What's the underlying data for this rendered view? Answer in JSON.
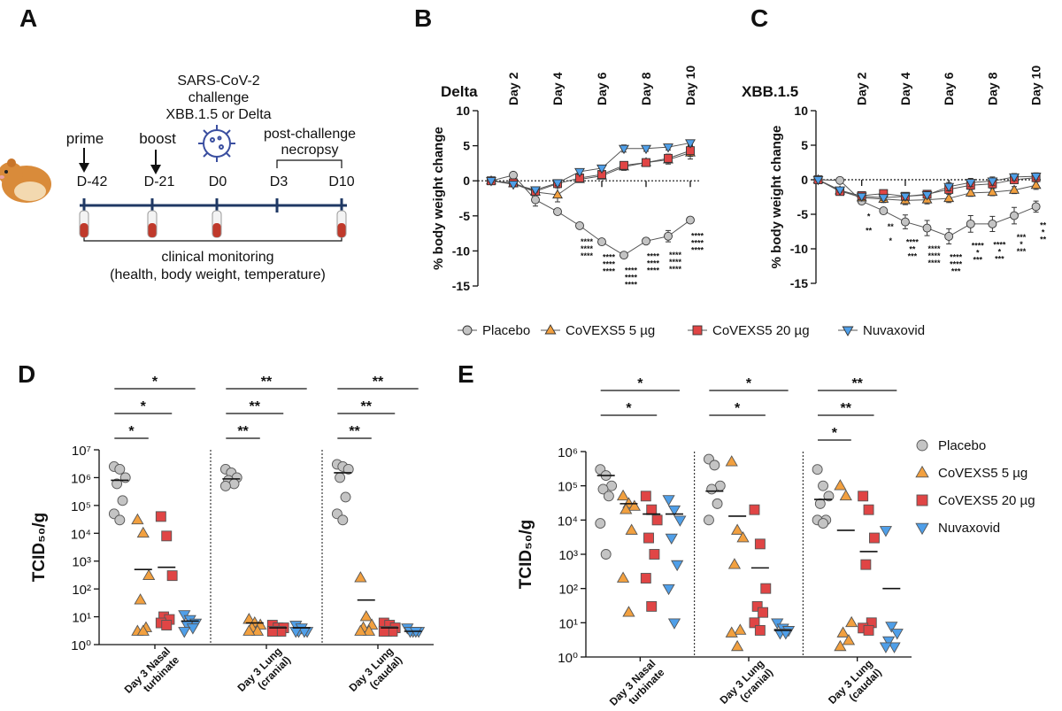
{
  "diagram": {
    "panel_label": "A",
    "challenge": [
      "SARS-CoV-2",
      "challenge",
      "XBB.1.5 or Delta"
    ],
    "prime": "prime",
    "boost": "boost",
    "necropsy": [
      "post-challenge",
      "necropsy"
    ],
    "timepoints": [
      "D-42",
      "D-21",
      "D0",
      "D3",
      "D10"
    ],
    "monitoring": [
      "clinical monitoring",
      "(health, body weight, temperature)"
    ]
  },
  "chart_data": [
    {
      "type": "line",
      "panel_label": "B",
      "title": "Delta",
      "y_label": "% body weight change",
      "x": [
        1,
        2,
        3,
        4,
        5,
        6,
        7,
        8,
        9,
        10
      ],
      "xlim": [
        0.4,
        10.4
      ],
      "xticks": [
        {
          "value": 2,
          "label": "Day 2"
        },
        {
          "value": 4,
          "label": "Day 4"
        },
        {
          "value": 6,
          "label": "Day 6"
        },
        {
          "value": 8,
          "label": "Day 8"
        },
        {
          "value": 10,
          "label": "Day 10"
        }
      ],
      "ylim": [
        -15,
        10
      ],
      "yticks": [
        -15,
        -10,
        -5,
        0,
        5,
        10
      ],
      "legend": "below",
      "series": [
        {
          "name": "Placebo",
          "color": "#c4c4c4",
          "marker": "circle",
          "values": [
            0,
            0.8,
            -2.7,
            -4.4,
            -6.4,
            -8.7,
            -10.6,
            -8.6,
            -7.9,
            -5.6
          ],
          "errors": [
            0.2,
            0.3,
            0.9,
            0.4,
            0.4,
            0.3,
            0.3,
            0.3,
            0.8,
            0.4
          ]
        },
        {
          "name": "CoVEXS5 5 µg",
          "color": "#f2a03f",
          "marker": "triangle-up",
          "values": [
            0,
            -0.4,
            -1.6,
            -2.0,
            0.2,
            0.7,
            2.0,
            2.6,
            3.0,
            4.0
          ],
          "errors": [
            0.2,
            0.3,
            0.4,
            1.0,
            0.4,
            0.4,
            0.5,
            0.5,
            0.6,
            0.9
          ],
          "stars": [
            null,
            null,
            null,
            null,
            "****",
            "****",
            "****",
            "****",
            "****",
            "****"
          ]
        },
        {
          "name": "CoVEXS5 20 µg",
          "color": "#e04545",
          "marker": "square",
          "values": [
            0,
            -0.3,
            -1.5,
            -0.4,
            0.4,
            0.9,
            2.2,
            2.6,
            3.2,
            4.3
          ],
          "errors": [
            0.2,
            0.3,
            0.4,
            0.4,
            0.4,
            0.4,
            0.5,
            0.5,
            0.6,
            0.8
          ],
          "stars": [
            null,
            null,
            null,
            null,
            "****",
            "****",
            "****",
            "****",
            "****",
            "****"
          ]
        },
        {
          "name": "Nuvaxovid",
          "color": "#4f9fe9",
          "marker": "triangle-down",
          "values": [
            0,
            -0.5,
            -1.3,
            -0.3,
            1.3,
            1.8,
            4.6,
            4.6,
            4.8,
            5.4
          ],
          "errors": [
            0.2,
            0.3,
            0.3,
            0.4,
            0.4,
            0.4,
            0.5,
            0.4,
            0.4,
            0.4
          ],
          "stars": [
            null,
            null,
            null,
            null,
            "****",
            "****",
            "****",
            "****",
            "****",
            "****"
          ]
        }
      ]
    },
    {
      "type": "line",
      "panel_label": "C",
      "title": "XBB.1.5",
      "y_label": "% body weight change",
      "x": [
        0,
        1,
        2,
        3,
        4,
        5,
        6,
        7,
        8,
        9,
        10
      ],
      "xlim": [
        -0.1,
        10.3
      ],
      "xticks": [
        {
          "value": 2,
          "label": "Day 2"
        },
        {
          "value": 4,
          "label": "Day 4"
        },
        {
          "value": 6,
          "label": "Day 6"
        },
        {
          "value": 8,
          "label": "Day 8"
        },
        {
          "value": 10,
          "label": "Day 10"
        }
      ],
      "ylim": [
        -15,
        10
      ],
      "yticks": [
        -15,
        -10,
        -5,
        0,
        5,
        10
      ],
      "series": [
        {
          "name": "Placebo",
          "color": "#c4c4c4",
          "marker": "circle",
          "values": [
            0,
            -0.1,
            -3.1,
            -4.5,
            -6.1,
            -7.0,
            -8.2,
            -6.4,
            -6.4,
            -5.2,
            -3.9
          ],
          "errors": [
            0,
            0.2,
            0.3,
            0.4,
            1.0,
            1.1,
            1.1,
            1.2,
            1.1,
            1.2,
            0.8
          ]
        },
        {
          "name": "CoVEXS5 5 µg",
          "color": "#f2a03f",
          "marker": "triangle-up",
          "values": [
            0,
            -1.6,
            -2.6,
            -2.8,
            -3.0,
            -2.9,
            -2.7,
            -1.9,
            -1.8,
            -1.5,
            -0.8
          ],
          "errors": [
            0,
            0.3,
            0.3,
            0.5,
            0.6,
            0.6,
            0.6,
            0.5,
            0.5,
            0.5,
            0.6
          ],
          "stars": [
            null,
            null,
            null,
            null,
            "**",
            "****",
            "****",
            "*",
            "*",
            "*",
            "*"
          ]
        },
        {
          "name": "CoVEXS5 20 µg",
          "color": "#e04545",
          "marker": "square",
          "values": [
            0,
            -1.7,
            -2.3,
            -2.0,
            -2.4,
            -2.1,
            -1.4,
            -0.8,
            -0.6,
            0.0,
            0.3
          ],
          "errors": [
            0,
            0.3,
            0.3,
            0.4,
            0.5,
            0.5,
            0.5,
            0.6,
            0.5,
            0.5,
            0.6
          ],
          "stars": [
            null,
            null,
            "**",
            "*",
            "***",
            "****",
            "***",
            "***",
            "***",
            "***",
            "**"
          ]
        },
        {
          "name": "Nuvaxovid",
          "color": "#4f9fe9",
          "marker": "triangle-down",
          "values": [
            0,
            -1.5,
            -2.4,
            -2.6,
            -2.4,
            -2.2,
            -1.0,
            -0.4,
            -0.2,
            0.4,
            0.5
          ],
          "errors": [
            0,
            0.3,
            0.3,
            0.4,
            0.5,
            0.5,
            0.6,
            0.6,
            0.6,
            0.5,
            0.5
          ],
          "stars": [
            null,
            null,
            "*",
            "**",
            "****",
            "****",
            "****",
            "****",
            "****",
            "***",
            "**"
          ]
        }
      ]
    },
    {
      "type": "dot",
      "panel_label": "D",
      "y_label": "TCID₅₀/g",
      "log": true,
      "categories": [
        [
          "Day 3 Nasal",
          "turbinate"
        ],
        [
          "Day 3 Lung",
          "(cranial)"
        ],
        [
          "Day 3 Lung",
          "(caudal)"
        ]
      ],
      "ylim": [
        1,
        10000000
      ],
      "yticks": [
        {
          "value": 1,
          "label": "10⁰"
        },
        {
          "value": 10,
          "label": "10¹"
        },
        {
          "value": 100,
          "label": "10²"
        },
        {
          "value": 1000,
          "label": "10³"
        },
        {
          "value": 10000,
          "label": "10⁴"
        },
        {
          "value": 100000,
          "label": "10⁵"
        },
        {
          "value": 1000000,
          "label": "10⁶"
        },
        {
          "value": 10000000,
          "label": "10⁷"
        }
      ],
      "series": [
        {
          "name": "Placebo",
          "color": "#c4c4c4",
          "marker": "circle",
          "values": [
            [
              2500000,
              2000000,
              1000000,
              600000,
              150000,
              50000,
              30000
            ],
            [
              2000000,
              1500000,
              1000000,
              800000,
              600000,
              500000
            ],
            [
              3000000,
              2500000,
              2000000,
              1000000,
              200000,
              50000,
              30000
            ]
          ],
          "means": [
            800000,
            900000,
            1500000
          ]
        },
        {
          "name": "CoVEXS5 5 µg",
          "color": "#f2a03f",
          "marker": "triangle-up",
          "values": [
            [
              30000,
              10000,
              300,
              40,
              4,
              3,
              3
            ],
            [
              8,
              6,
              5,
              4,
              3,
              3
            ],
            [
              250,
              10,
              5,
              4,
              3,
              3
            ]
          ],
          "means": [
            500,
            6,
            40
          ],
          "significance": [
            "*",
            "**",
            "**"
          ]
        },
        {
          "name": "CoVEXS5 20 µg",
          "color": "#e04545",
          "marker": "square",
          "values": [
            [
              40000,
              8000,
              300,
              10,
              8,
              6,
              5
            ],
            [
              5,
              4,
              4,
              3,
              3,
              3
            ],
            [
              6,
              5,
              4,
              3,
              3,
              3
            ]
          ],
          "means": [
            600,
            4,
            4
          ],
          "significance": [
            "*",
            "**",
            "**"
          ]
        },
        {
          "name": "Nuvaxovid",
          "color": "#4f9fe9",
          "marker": "triangle-down",
          "values": [
            [
              12,
              8,
              6,
              5,
              4,
              3
            ],
            [
              5,
              4,
              3,
              3,
              3,
              3
            ],
            [
              4,
              3,
              3,
              3,
              3
            ]
          ],
          "means": [
            7,
            4,
            3
          ],
          "significance": [
            "*",
            "**",
            "**"
          ]
        }
      ]
    },
    {
      "type": "dot",
      "panel_label": "E",
      "y_label": "TCID₅₀/g",
      "log": true,
      "legend": "right",
      "categories": [
        [
          "Day 3 Nasal",
          "turbinate"
        ],
        [
          "Day 3 Lung",
          "(cranial)"
        ],
        [
          "Day 3 Lung",
          "(caudal)"
        ]
      ],
      "ylim": [
        1,
        1000000
      ],
      "yticks": [
        {
          "value": 1,
          "label": "10⁰"
        },
        {
          "value": 10,
          "label": "10¹"
        },
        {
          "value": 100,
          "label": "10²"
        },
        {
          "value": 1000,
          "label": "10³"
        },
        {
          "value": 10000,
          "label": "10⁴"
        },
        {
          "value": 100000,
          "label": "10⁵"
        },
        {
          "value": 1000000,
          "label": "10⁶"
        }
      ],
      "series": [
        {
          "name": "Placebo",
          "color": "#c4c4c4",
          "marker": "circle",
          "values": [
            [
              300000,
              200000,
              100000,
              80000,
              50000,
              8000,
              1000
            ],
            [
              600000,
              400000,
              100000,
              80000,
              30000,
              10000
            ],
            [
              300000,
              100000,
              50000,
              30000,
              10000,
              10000,
              8000
            ]
          ],
          "means": [
            200000,
            70000,
            40000
          ]
        },
        {
          "name": "CoVEXS5 5 µg",
          "color": "#f2a03f",
          "marker": "triangle-up",
          "values": [
            [
              50000,
              30000,
              25000,
              20000,
              5000,
              200,
              20
            ],
            [
              500000,
              5000,
              3000,
              500,
              6,
              5,
              2
            ],
            [
              100000,
              50000,
              10,
              5,
              3,
              2
            ]
          ],
          "means": [
            30000,
            13000,
            5000
          ],
          "significance": [
            null,
            null,
            "*"
          ]
        },
        {
          "name": "CoVEXS5 20 µg",
          "color": "#e04545",
          "marker": "square",
          "values": [
            [
              50000,
              20000,
              10000,
              3000,
              1000,
              200,
              30
            ],
            [
              20000,
              2000,
              100,
              30,
              20,
              10,
              6
            ],
            [
              50000,
              20000,
              3000,
              500,
              10,
              7,
              6
            ]
          ],
          "means": [
            15000,
            400,
            1200
          ],
          "significance": [
            "*",
            "*",
            "**"
          ]
        },
        {
          "name": "Nuvaxovid",
          "color": "#4f9fe9",
          "marker": "triangle-down",
          "values": [
            [
              40000,
              20000,
              10000,
              3000,
              500,
              100,
              10
            ],
            [
              10,
              7,
              6,
              5,
              5
            ],
            [
              5000,
              8,
              5,
              3,
              2,
              2
            ]
          ],
          "means": [
            15000,
            6,
            100
          ],
          "significance": [
            "*",
            "*",
            "**"
          ]
        }
      ]
    }
  ]
}
